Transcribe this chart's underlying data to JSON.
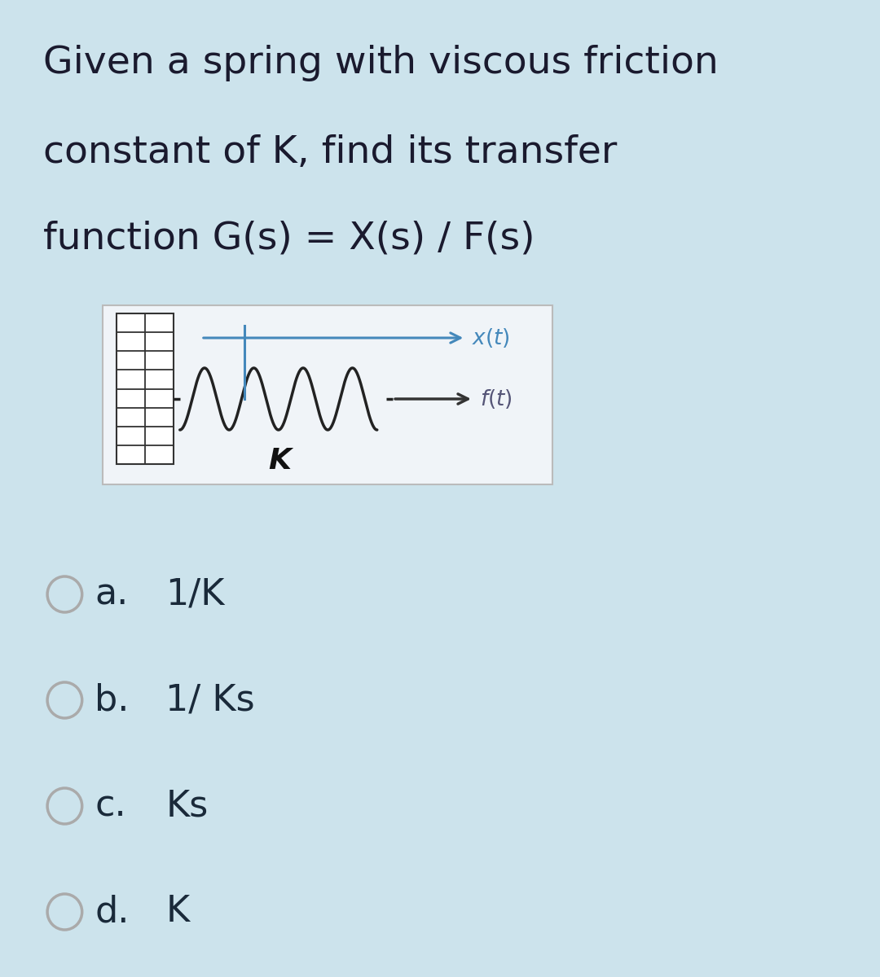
{
  "bg_color": "#cce3ec",
  "title_lines": [
    "Given a spring with viscous friction",
    "constant of K, find its transfer",
    "function G(s) = X(s) / F(s)"
  ],
  "title_fontsize": 34,
  "title_color": "#1a1a2e",
  "diagram_box_color": "#f0f4f8",
  "diagram_box_border": "#bbbbbb",
  "spring_color": "#222222",
  "wall_color": "#333333",
  "arrow_color_blue": "#4488bb",
  "arrow_color_black": "#333333",
  "label_xt_color": "#4488bb",
  "label_ft_color": "#555577",
  "label_K_color": "#111111",
  "options_labels": [
    "a.",
    "b.",
    "c.",
    "d."
  ],
  "options_values": [
    "1/K",
    "1/ Ks",
    "Ks",
    "K"
  ],
  "option_fontsize": 32,
  "option_color": "#1a2a3a",
  "radio_color": "#aaaaaa",
  "radio_lw": 2.5
}
